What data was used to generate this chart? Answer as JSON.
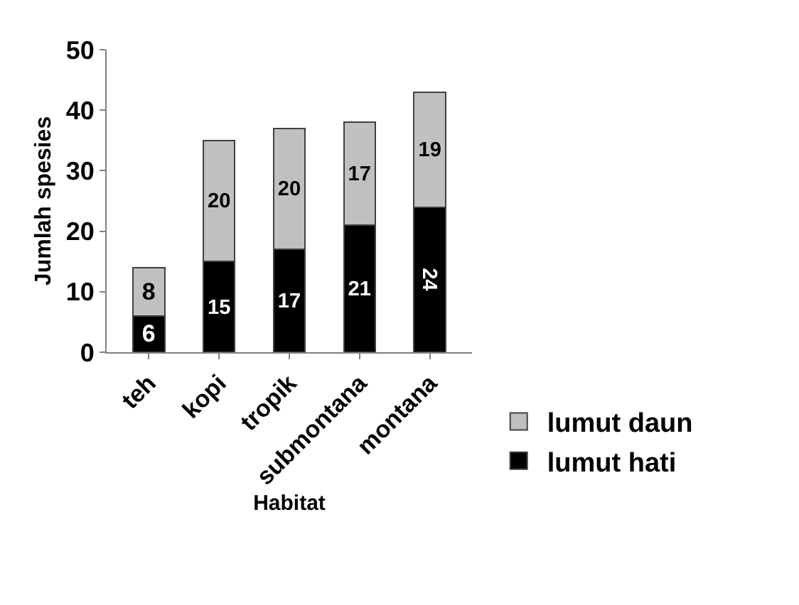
{
  "chart_data": {
    "type": "bar",
    "stacked": true,
    "xlabel": "Habitat",
    "ylabel": "Jumlah spesies",
    "categories": [
      "teh",
      "kopi",
      "tropik",
      "submontana",
      "montana"
    ],
    "series": [
      {
        "name": "lumut hati",
        "color": "#000000",
        "values": [
          6,
          15,
          17,
          21,
          24
        ]
      },
      {
        "name": "lumut daun",
        "color": "#c0c0c0",
        "values": [
          8,
          20,
          20,
          17,
          19
        ]
      }
    ],
    "ylim": [
      0,
      50
    ],
    "yticks": [
      0,
      10,
      20,
      30,
      40,
      50
    ],
    "grid": false,
    "legend": "bottom right",
    "data_labels": true
  }
}
